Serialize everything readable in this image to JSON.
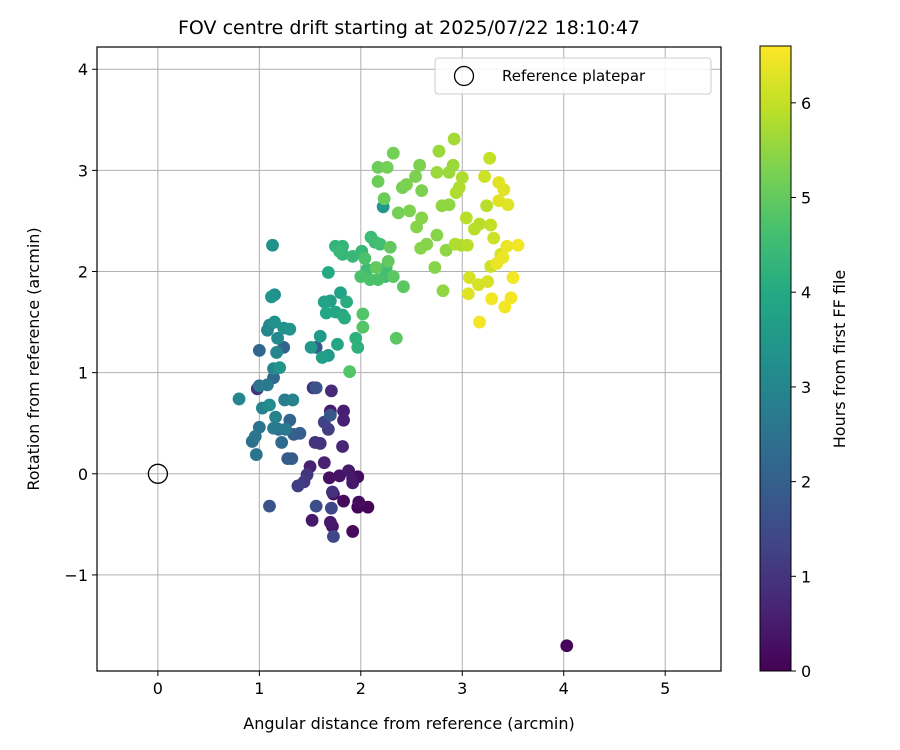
{
  "chart_data": {
    "type": "scatter",
    "title": "FOV centre drift starting at 2025/07/22 18:10:47",
    "xlabel": "Angular distance from reference (arcmin)",
    "ylabel": "Rotation from reference (arcmin)",
    "xlim": [
      -0.6,
      5.55
    ],
    "ylim": [
      -1.95,
      4.22
    ],
    "xticks": [
      0,
      1,
      2,
      3,
      4,
      5
    ],
    "xtick_labels": [
      "0",
      "1",
      "2",
      "3",
      "4",
      "5"
    ],
    "yticks": [
      -1,
      0,
      1,
      2,
      3,
      4
    ],
    "ytick_labels": [
      "−1",
      "0",
      "1",
      "2",
      "3",
      "4"
    ],
    "grid": true,
    "legend": {
      "position": "top-right",
      "entries": [
        {
          "label": "Reference platepar",
          "marker": "open-circle"
        }
      ]
    },
    "reference_point": {
      "x": 0,
      "y": 0
    },
    "colorbar": {
      "label": "Hours from first FF file",
      "range": [
        0,
        6.6
      ],
      "ticks": [
        0,
        1,
        2,
        3,
        4,
        5,
        6
      ],
      "tick_labels": [
        "0",
        "1",
        "2",
        "3",
        "4",
        "5",
        "6"
      ],
      "colormap": "viridis",
      "stops": [
        "#440154",
        "#482475",
        "#414487",
        "#355f8d",
        "#2a788e",
        "#21918c",
        "#22a884",
        "#44bf70",
        "#7ad151",
        "#bddf26",
        "#fde725"
      ]
    },
    "points": [
      [
        1.97,
        -0.33,
        0.05
      ],
      [
        2.07,
        -0.33,
        0.1
      ],
      [
        1.92,
        -0.57,
        0.2
      ],
      [
        1.83,
        -0.27,
        0.2
      ],
      [
        1.98,
        -0.28,
        0.2
      ],
      [
        1.97,
        -0.03,
        0.2
      ],
      [
        1.73,
        -0.2,
        0.25
      ],
      [
        1.69,
        -0.04,
        0.3
      ],
      [
        1.79,
        -0.02,
        0.35
      ],
      [
        1.92,
        -0.05,
        0.35
      ],
      [
        1.72,
        -0.52,
        0.4
      ],
      [
        1.52,
        -0.46,
        0.45
      ],
      [
        1.7,
        -0.48,
        0.45
      ],
      [
        1.88,
        0.03,
        0.45
      ],
      [
        1.92,
        -0.09,
        0.45
      ],
      [
        4.03,
        -1.7,
        0.1
      ],
      [
        1.64,
        0.11,
        0.6
      ],
      [
        1.5,
        0.07,
        0.6
      ],
      [
        1.7,
        0.62,
        0.5
      ],
      [
        1.83,
        0.62,
        0.55
      ],
      [
        1.83,
        0.53,
        0.6
      ],
      [
        1.82,
        0.27,
        0.7
      ],
      [
        1.71,
        0.82,
        0.8
      ],
      [
        1.53,
        0.85,
        0.9
      ],
      [
        1.72,
        -0.18,
        0.9
      ],
      [
        1.47,
        -0.01,
        1.0
      ],
      [
        1.6,
        0.3,
        1.0
      ],
      [
        1.55,
        0.31,
        1.0
      ],
      [
        1.44,
        -0.08,
        1.1
      ],
      [
        1.38,
        -0.12,
        1.2
      ],
      [
        1.68,
        0.44,
        1.2
      ],
      [
        1.64,
        0.51,
        1.3
      ],
      [
        0.98,
        0.84,
        1.0
      ],
      [
        1.73,
        -0.62,
        1.4
      ],
      [
        1.71,
        -0.34,
        1.4
      ],
      [
        1.56,
        -0.32,
        1.6
      ],
      [
        1.1,
        -0.32,
        1.7
      ],
      [
        1.56,
        0.85,
        1.7
      ],
      [
        1.7,
        0.58,
        1.8
      ],
      [
        1.56,
        1.25,
        1.8
      ],
      [
        1.28,
        0.15,
        1.9
      ],
      [
        1.32,
        0.15,
        1.9
      ],
      [
        1.34,
        0.39,
        2.0
      ],
      [
        1.4,
        0.4,
        2.0
      ],
      [
        1.3,
        0.53,
        2.1
      ],
      [
        1.24,
        1.25,
        2.1
      ],
      [
        1.0,
        1.22,
        2.2
      ],
      [
        1.14,
        0.95,
        2.2
      ],
      [
        1.19,
        0.44,
        2.3
      ],
      [
        1.22,
        0.31,
        2.3
      ],
      [
        0.93,
        0.32,
        2.4
      ],
      [
        1.0,
        0.46,
        2.5
      ],
      [
        0.97,
        0.19,
        2.5
      ],
      [
        0.96,
        0.37,
        2.6
      ],
      [
        1.0,
        0.87,
        2.6
      ],
      [
        1.08,
        0.88,
        2.7
      ],
      [
        1.26,
        0.44,
        2.7
      ],
      [
        1.14,
        0.45,
        2.7
      ],
      [
        1.25,
        0.73,
        2.8
      ],
      [
        1.03,
        0.65,
        2.9
      ],
      [
        1.33,
        0.73,
        2.9
      ],
      [
        1.16,
        0.56,
        2.9
      ],
      [
        0.8,
        0.74,
        3.0
      ],
      [
        1.14,
        1.04,
        3.0
      ],
      [
        1.08,
        1.42,
        3.0
      ],
      [
        1.17,
        1.2,
        3.0
      ],
      [
        1.18,
        1.34,
        3.1
      ],
      [
        1.1,
        1.47,
        3.1
      ],
      [
        1.15,
        1.77,
        3.2
      ],
      [
        1.13,
        2.26,
        3.3
      ],
      [
        1.1,
        0.68,
        3.2
      ],
      [
        1.15,
        1.5,
        3.3
      ],
      [
        1.24,
        1.44,
        3.3
      ],
      [
        1.3,
        1.43,
        3.4
      ],
      [
        1.12,
        1.75,
        3.4
      ],
      [
        1.2,
        1.05,
        3.4
      ],
      [
        1.51,
        1.25,
        3.5
      ],
      [
        1.68,
        1.17,
        3.5
      ],
      [
        1.6,
        1.36,
        3.6
      ],
      [
        1.62,
        1.15,
        3.7
      ],
      [
        1.7,
        1.71,
        3.7
      ],
      [
        1.64,
        1.7,
        3.8
      ],
      [
        1.8,
        1.79,
        3.8
      ],
      [
        1.66,
        1.59,
        3.9
      ],
      [
        1.75,
        1.6,
        3.9
      ],
      [
        1.77,
        1.28,
        3.9
      ],
      [
        1.82,
        1.57,
        4.0
      ],
      [
        1.68,
        1.99,
        4.0
      ],
      [
        1.84,
        1.54,
        4.1
      ],
      [
        1.86,
        1.7,
        4.1
      ],
      [
        1.95,
        1.34,
        4.2
      ],
      [
        1.97,
        1.25,
        4.2
      ],
      [
        2.22,
        2.64,
        3.5
      ],
      [
        1.75,
        2.25,
        4.3
      ],
      [
        1.82,
        2.25,
        4.3
      ],
      [
        1.82,
        2.17,
        4.3
      ],
      [
        1.79,
        2.2,
        4.4
      ],
      [
        1.92,
        2.15,
        4.4
      ],
      [
        2.01,
        2.2,
        4.4
      ],
      [
        2.06,
        2.02,
        4.5
      ],
      [
        2.1,
        2.34,
        4.5
      ],
      [
        2.14,
        2.29,
        4.5
      ],
      [
        2.19,
        2.27,
        4.6
      ],
      [
        2.25,
        2.04,
        4.6
      ],
      [
        2.24,
        1.95,
        4.6
      ],
      [
        2.17,
        1.92,
        4.7
      ],
      [
        2.04,
        2.13,
        4.7
      ],
      [
        2.0,
        1.95,
        4.7
      ],
      [
        2.09,
        1.92,
        4.7
      ],
      [
        1.89,
        1.01,
        4.8
      ],
      [
        2.02,
        1.58,
        4.8
      ],
      [
        2.02,
        1.45,
        4.8
      ],
      [
        2.35,
        1.34,
        4.9
      ],
      [
        2.32,
        1.95,
        4.9
      ],
      [
        2.42,
        1.85,
        4.9
      ],
      [
        2.29,
        2.24,
        5.0
      ],
      [
        2.27,
        2.1,
        5.0
      ],
      [
        2.15,
        2.04,
        5.0
      ],
      [
        2.23,
        2.72,
        5.1
      ],
      [
        2.17,
        2.89,
        5.1
      ],
      [
        2.17,
        3.03,
        5.1
      ],
      [
        2.26,
        3.03,
        5.2
      ],
      [
        2.32,
        3.17,
        5.2
      ],
      [
        2.41,
        2.83,
        5.2
      ],
      [
        2.37,
        2.58,
        5.2
      ],
      [
        2.48,
        2.6,
        5.3
      ],
      [
        2.54,
        2.94,
        5.3
      ],
      [
        2.45,
        2.86,
        5.3
      ],
      [
        2.58,
        3.05,
        5.3
      ],
      [
        2.6,
        2.8,
        5.3
      ],
      [
        2.55,
        2.44,
        5.4
      ],
      [
        2.6,
        2.53,
        5.4
      ],
      [
        2.65,
        2.27,
        5.4
      ],
      [
        2.59,
        2.23,
        5.4
      ],
      [
        2.75,
        2.36,
        5.4
      ],
      [
        2.73,
        2.04,
        5.4
      ],
      [
        2.84,
        2.21,
        5.5
      ],
      [
        2.8,
        2.65,
        5.5
      ],
      [
        2.87,
        2.66,
        5.5
      ],
      [
        2.81,
        1.81,
        5.5
      ],
      [
        2.77,
        3.19,
        5.6
      ],
      [
        2.75,
        2.98,
        5.6
      ],
      [
        2.91,
        3.05,
        5.6
      ],
      [
        2.92,
        3.31,
        5.7
      ],
      [
        2.87,
        2.98,
        5.6
      ],
      [
        2.94,
        2.78,
        5.8
      ],
      [
        2.97,
        2.83,
        5.8
      ],
      [
        3.0,
        2.93,
        5.8
      ],
      [
        2.93,
        2.27,
        5.8
      ],
      [
        2.99,
        2.26,
        5.8
      ],
      [
        3.05,
        2.26,
        5.9
      ],
      [
        3.04,
        2.53,
        5.9
      ],
      [
        3.12,
        2.42,
        5.9
      ],
      [
        3.17,
        2.47,
        5.9
      ],
      [
        3.24,
        2.65,
        5.9
      ],
      [
        3.27,
        3.12,
        6.0
      ],
      [
        3.28,
        2.46,
        6.0
      ],
      [
        3.22,
        2.94,
        6.1
      ],
      [
        3.31,
        2.33,
        6.1
      ],
      [
        3.28,
        2.05,
        6.1
      ],
      [
        3.38,
        2.17,
        6.2
      ],
      [
        3.07,
        1.94,
        6.2
      ],
      [
        3.16,
        1.87,
        6.2
      ],
      [
        3.25,
        1.9,
        6.2
      ],
      [
        3.06,
        1.78,
        6.3
      ],
      [
        3.36,
        2.88,
        6.3
      ],
      [
        3.41,
        2.81,
        6.3
      ],
      [
        3.36,
        2.7,
        6.3
      ],
      [
        3.45,
        2.66,
        6.3
      ],
      [
        3.34,
        2.08,
        6.4
      ],
      [
        3.4,
        2.14,
        6.4
      ],
      [
        3.44,
        2.25,
        6.4
      ],
      [
        3.55,
        2.26,
        6.5
      ],
      [
        3.5,
        1.94,
        6.5
      ],
      [
        3.29,
        1.73,
        6.5
      ],
      [
        3.48,
        1.74,
        6.5
      ],
      [
        3.42,
        1.65,
        6.5
      ],
      [
        3.17,
        1.5,
        6.5
      ]
    ]
  }
}
